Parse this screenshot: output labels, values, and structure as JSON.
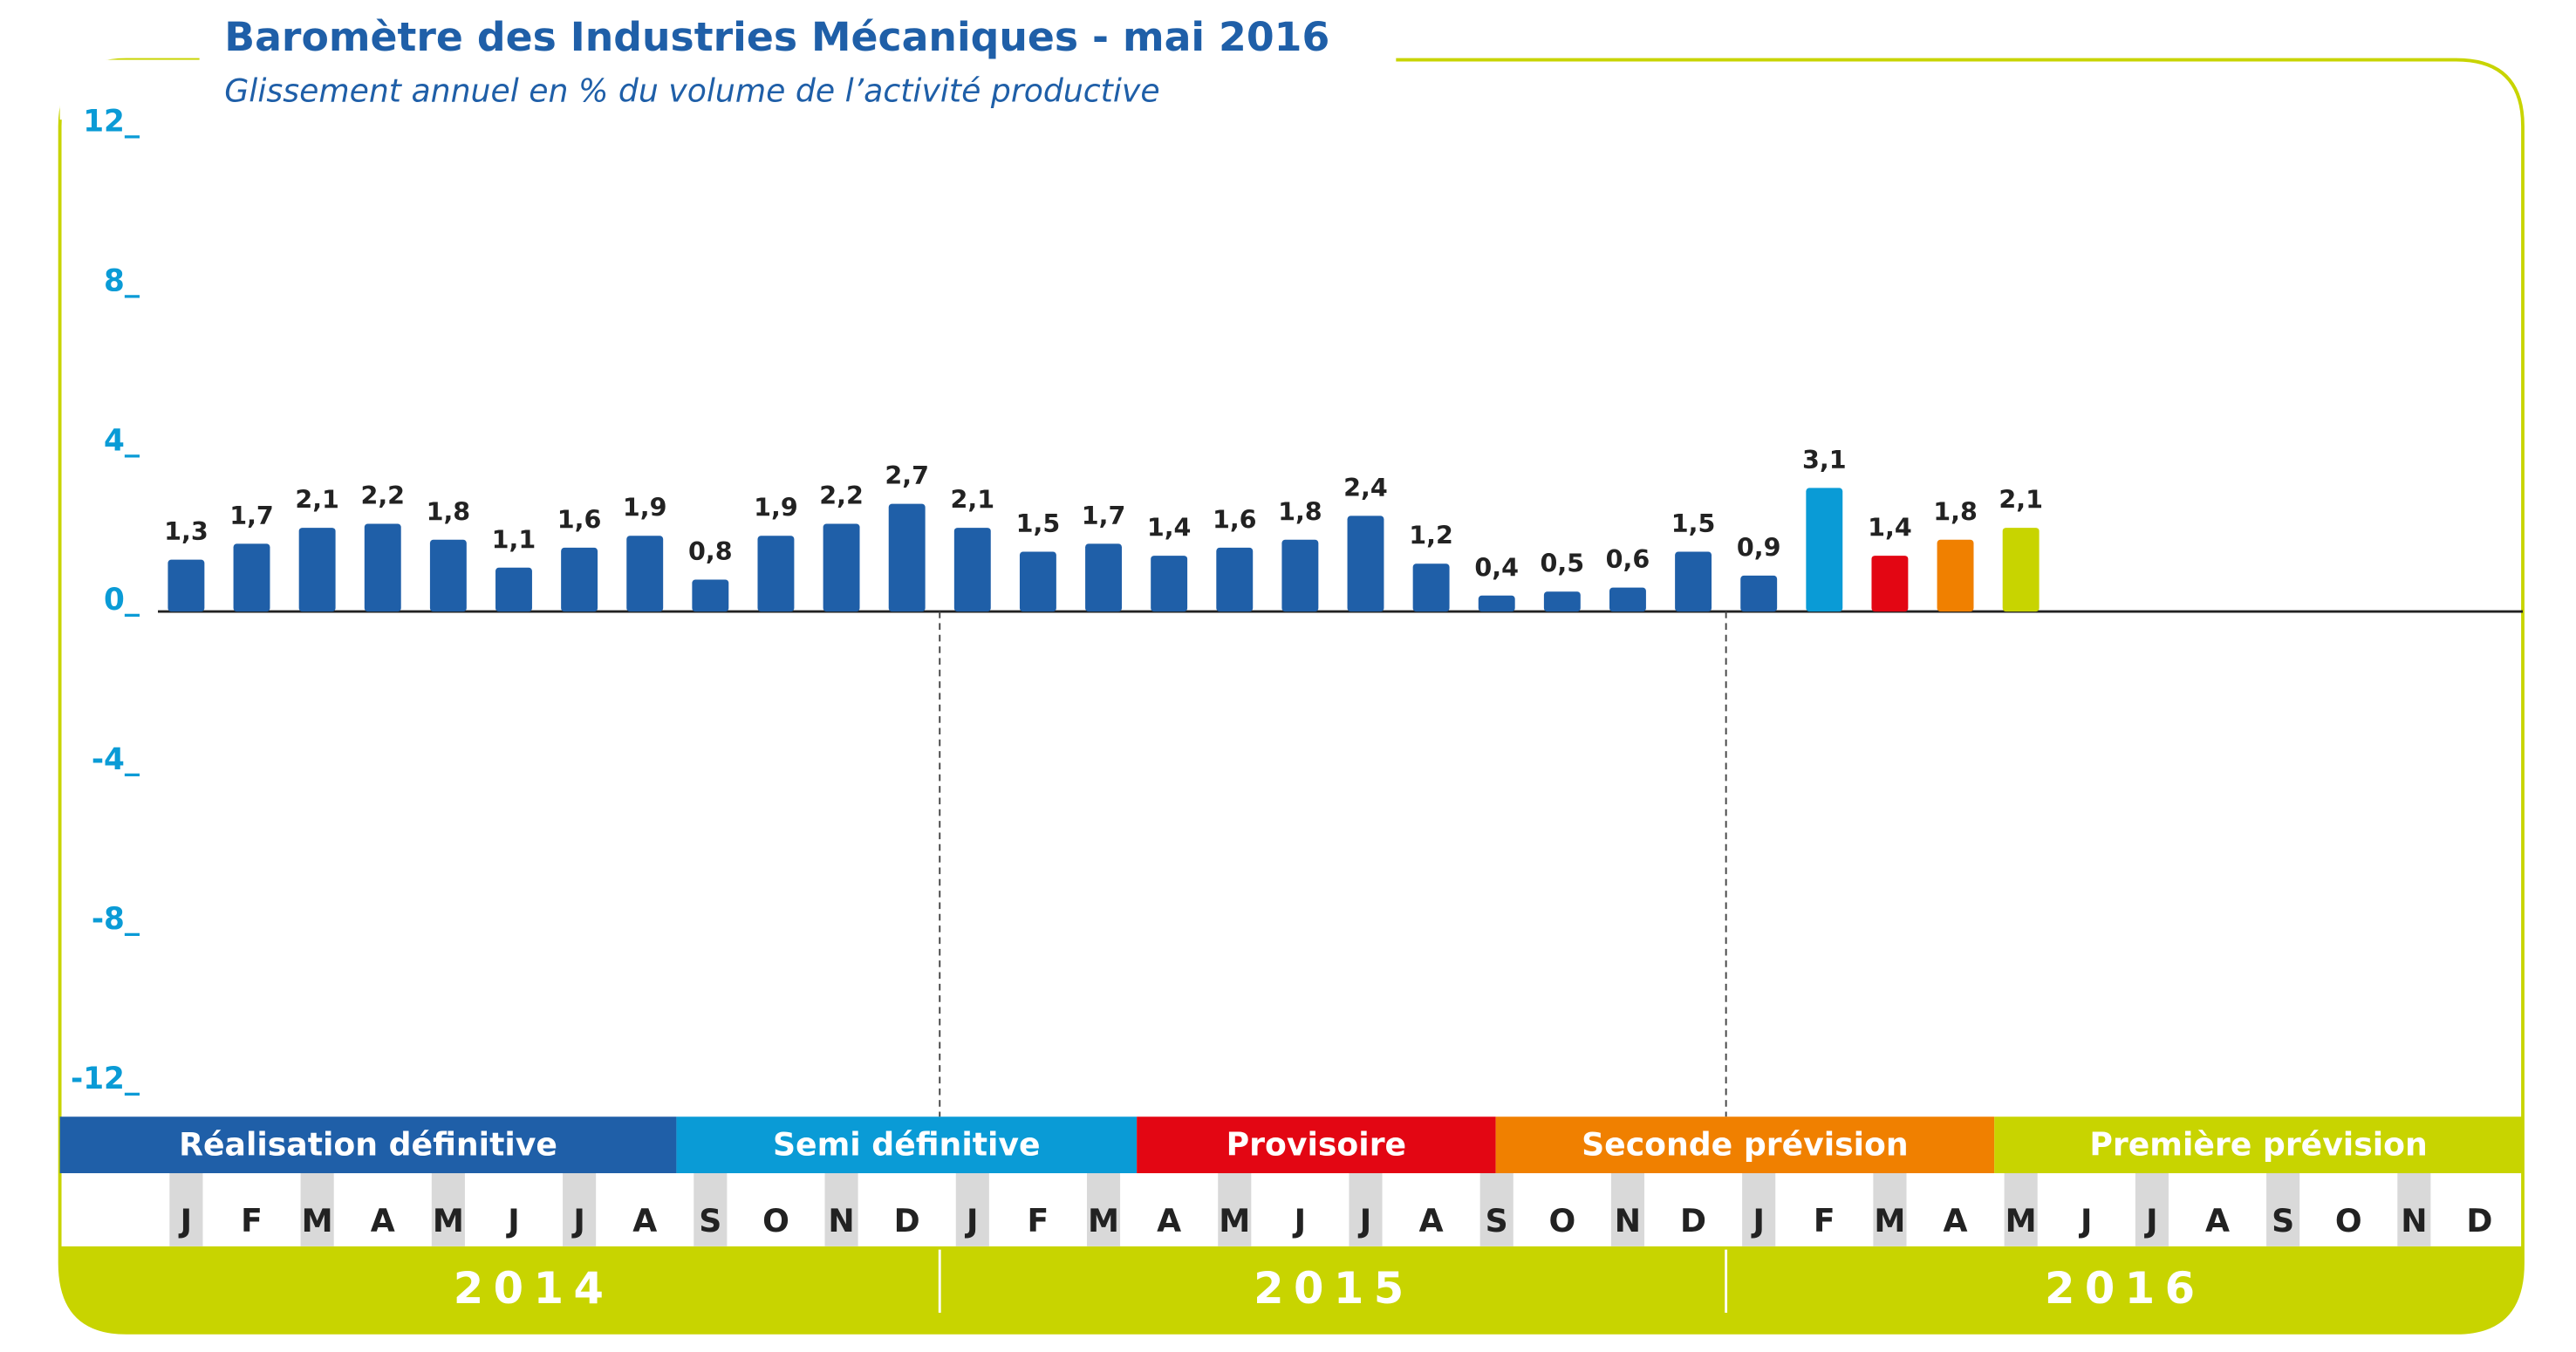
{
  "chart_data": {
    "type": "bar",
    "title": "Baromètre des Industries Mécaniques - mai 2016",
    "subtitle": "Glissement annuel en % du volume de l’activité productive",
    "categories": [
      "J",
      "F",
      "M",
      "A",
      "M",
      "J",
      "J",
      "A",
      "S",
      "O",
      "N",
      "D",
      "J",
      "F",
      "M",
      "A",
      "M",
      "J",
      "J",
      "A",
      "S",
      "O",
      "N",
      "D",
      "J",
      "F",
      "M",
      "A",
      "M",
      "J",
      "J",
      "A",
      "S",
      "O",
      "N",
      "D"
    ],
    "years": [
      "2014",
      "2015",
      "2016"
    ],
    "values": [
      1.3,
      1.7,
      2.1,
      2.2,
      1.8,
      1.1,
      1.6,
      1.9,
      0.8,
      1.9,
      2.2,
      2.7,
      2.1,
      1.5,
      1.7,
      1.4,
      1.6,
      1.8,
      2.4,
      1.2,
      0.4,
      0.5,
      0.6,
      1.5,
      0.9,
      3.1,
      1.4,
      1.8,
      2.1,
      null,
      null,
      null,
      null,
      null,
      null,
      null
    ],
    "value_labels": [
      "1,3",
      "1,7",
      "2,1",
      "2,2",
      "1,8",
      "1,1",
      "1,6",
      "1,9",
      "0,8",
      "1,9",
      "2,2",
      "2,7",
      "2,1",
      "1,5",
      "1,7",
      "1,4",
      "1,6",
      "1,8",
      "2,4",
      "1,2",
      "0,4",
      "0,5",
      "0,6",
      "1,5",
      "0,9",
      "3,1",
      "1,4",
      "1,8",
      "2,1",
      null,
      null,
      null,
      null,
      null,
      null,
      null
    ],
    "colors": [
      "#1f5fa8",
      "#1f5fa8",
      "#1f5fa8",
      "#1f5fa8",
      "#1f5fa8",
      "#1f5fa8",
      "#1f5fa8",
      "#1f5fa8",
      "#1f5fa8",
      "#1f5fa8",
      "#1f5fa8",
      "#1f5fa8",
      "#1f5fa8",
      "#1f5fa8",
      "#1f5fa8",
      "#1f5fa8",
      "#1f5fa8",
      "#1f5fa8",
      "#1f5fa8",
      "#1f5fa8",
      "#1f5fa8",
      "#1f5fa8",
      "#1f5fa8",
      "#1f5fa8",
      "#1f5fa8",
      "#0a9bd6",
      "#e30613",
      "#f08000",
      "#c8d400",
      null,
      null,
      null,
      null,
      null,
      null,
      null
    ],
    "phases": [
      {
        "label": "Réalisation définitive",
        "color": "#1f5fa8"
      },
      {
        "label": "Semi définitive",
        "color": "#0a9bd6"
      },
      {
        "label": "Provisoire",
        "color": "#e30613"
      },
      {
        "label": "Seconde prévision",
        "color": "#f08000"
      },
      {
        "label": "Première prévision",
        "color": "#c8d400"
      }
    ],
    "ylim": [
      -12,
      12
    ],
    "yticks": [
      {
        "value": 12,
        "label": "12_"
      },
      {
        "value": 8,
        "label": "8_"
      },
      {
        "value": 4,
        "label": "4_"
      },
      {
        "value": 0,
        "label": "0_"
      },
      {
        "value": -4,
        "label": "-4_"
      },
      {
        "value": -8,
        "label": "-8_"
      },
      {
        "value": -12,
        "label": "-12_"
      }
    ]
  }
}
